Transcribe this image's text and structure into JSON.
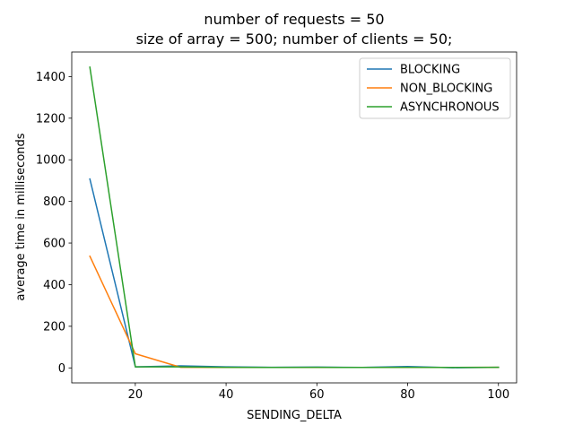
{
  "chart_data": {
    "type": "line",
    "title": "number of requests = 50",
    "subtitle": "size of array = 500; number of clients = 50;",
    "xlabel": "SENDING_DELTA",
    "ylabel": "average time in milliseconds",
    "xlim": [
      6,
      104
    ],
    "ylim": [
      -72,
      1518
    ],
    "xticks": [
      20,
      40,
      60,
      80,
      100
    ],
    "yticks": [
      0,
      200,
      400,
      600,
      800,
      1000,
      1200,
      1400
    ],
    "grid": false,
    "legend_position": "top-right",
    "x": [
      10,
      20,
      30,
      40,
      50,
      60,
      70,
      80,
      90,
      100
    ],
    "series": [
      {
        "name": "BLOCKING",
        "color": "#1f77b4",
        "values": [
          908,
          5,
          10,
          5,
          3,
          4,
          2,
          7,
          1,
          3
        ]
      },
      {
        "name": "NON_BLOCKING",
        "color": "#ff7f0e",
        "values": [
          537,
          68,
          3,
          2,
          2,
          2,
          2,
          2,
          2,
          3
        ]
      },
      {
        "name": "ASYNCHRONOUS",
        "color": "#2ca02c",
        "values": [
          1445,
          5,
          5,
          3,
          2,
          3,
          2,
          3,
          2,
          3
        ]
      }
    ]
  }
}
